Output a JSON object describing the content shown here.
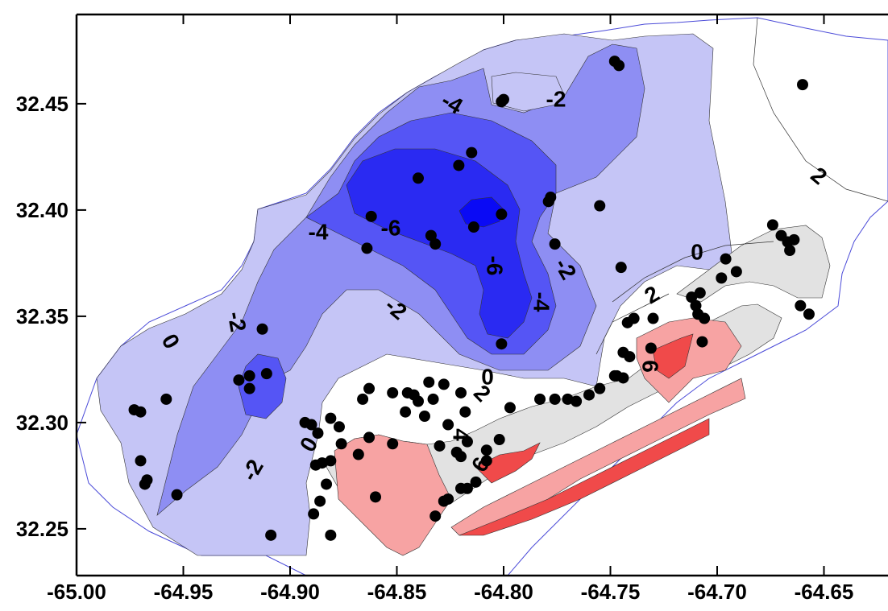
{
  "chart_data": {
    "type": "contour-map",
    "xlim": [
      -65.0,
      -64.62
    ],
    "ylim": [
      32.228,
      32.492
    ],
    "x_ticks": [
      "-65.00",
      "-64.95",
      "-64.90",
      "-64.85",
      "-64.80",
      "-64.75",
      "-64.70",
      "-64.65"
    ],
    "y_ticks": [
      "32.25",
      "32.30",
      "32.35",
      "32.40",
      "32.45"
    ],
    "contour_levels": [
      -6,
      -4,
      -2,
      0,
      2,
      4,
      6
    ],
    "level_colors": {
      "-6": "#0a0af5",
      "-4": "#5555f5",
      "-2": "#8e8ef3",
      "0": "#c5c5f6",
      "2": "#ffffff",
      "4": "#f7a3a3",
      "6": "#f04a4a"
    },
    "land_color": "#e2e2e2",
    "contour_labels": [
      "-6",
      "-6",
      "-4",
      "-4",
      "-4",
      "-2",
      "-2",
      "-2",
      "-2",
      "-2",
      "0",
      "0",
      "0",
      "0",
      "2",
      "2",
      "2",
      "4",
      "6",
      "6"
    ],
    "stations": [
      [
        -64.748,
        32.47
      ],
      [
        -64.746,
        32.468
      ],
      [
        -64.801,
        32.451
      ],
      [
        -64.8,
        32.452
      ],
      [
        -64.66,
        32.459
      ],
      [
        -64.815,
        32.427
      ],
      [
        -64.821,
        32.421
      ],
      [
        -64.84,
        32.415
      ],
      [
        -64.778,
        32.406
      ],
      [
        -64.779,
        32.404
      ],
      [
        -64.755,
        32.402
      ],
      [
        -64.801,
        32.398
      ],
      [
        -64.814,
        32.392
      ],
      [
        -64.862,
        32.397
      ],
      [
        -64.834,
        32.388
      ],
      [
        -64.832,
        32.384
      ],
      [
        -64.864,
        32.382
      ],
      [
        -64.776,
        32.384
      ],
      [
        -64.745,
        32.373
      ],
      [
        -64.696,
        32.377
      ],
      [
        -64.691,
        32.371
      ],
      [
        -64.698,
        32.368
      ],
      [
        -64.674,
        32.393
      ],
      [
        -64.67,
        32.388
      ],
      [
        -64.667,
        32.385
      ],
      [
        -64.664,
        32.386
      ],
      [
        -64.666,
        32.381
      ],
      [
        -64.708,
        32.361
      ],
      [
        -64.712,
        32.359
      ],
      [
        -64.71,
        32.355
      ],
      [
        -64.706,
        32.349
      ],
      [
        -64.709,
        32.351
      ],
      [
        -64.661,
        32.355
      ],
      [
        -64.657,
        32.351
      ],
      [
        -64.742,
        32.347
      ],
      [
        -64.739,
        32.349
      ],
      [
        -64.73,
        32.349
      ],
      [
        -64.707,
        32.338
      ],
      [
        -64.744,
        32.333
      ],
      [
        -64.741,
        32.331
      ],
      [
        -64.731,
        32.335
      ],
      [
        -64.747,
        32.322
      ],
      [
        -64.744,
        32.321
      ],
      [
        -64.801,
        32.337
      ],
      [
        -64.913,
        32.344
      ],
      [
        -64.911,
        32.323
      ],
      [
        -64.919,
        32.322
      ],
      [
        -64.924,
        32.32
      ],
      [
        -64.919,
        32.316
      ],
      [
        -64.973,
        32.306
      ],
      [
        -64.97,
        32.305
      ],
      [
        -64.958,
        32.311
      ],
      [
        -64.97,
        32.282
      ],
      [
        -64.967,
        32.273
      ],
      [
        -64.968,
        32.271
      ],
      [
        -64.953,
        32.266
      ],
      [
        -64.909,
        32.247
      ],
      [
        -64.893,
        32.3
      ],
      [
        -64.89,
        32.299
      ],
      [
        -64.887,
        32.295
      ],
      [
        -64.885,
        32.281
      ],
      [
        -64.888,
        32.28
      ],
      [
        -64.883,
        32.271
      ],
      [
        -64.886,
        32.263
      ],
      [
        -64.889,
        32.257
      ],
      [
        -64.881,
        32.247
      ],
      [
        -64.881,
        32.302
      ],
      [
        -64.877,
        32.298
      ],
      [
        -64.876,
        32.29
      ],
      [
        -64.881,
        32.282
      ],
      [
        -64.868,
        32.285
      ],
      [
        -64.863,
        32.293
      ],
      [
        -64.86,
        32.265
      ],
      [
        -64.866,
        32.311
      ],
      [
        -64.863,
        32.316
      ],
      [
        -64.852,
        32.314
      ],
      [
        -64.845,
        32.314
      ],
      [
        -64.846,
        32.305
      ],
      [
        -64.842,
        32.313
      ],
      [
        -64.84,
        32.31
      ],
      [
        -64.837,
        32.303
      ],
      [
        -64.852,
        32.29
      ],
      [
        -64.835,
        32.319
      ],
      [
        -64.828,
        32.318
      ],
      [
        -64.833,
        32.311
      ],
      [
        -64.826,
        32.299
      ],
      [
        -64.83,
        32.289
      ],
      [
        -64.82,
        32.314
      ],
      [
        -64.818,
        32.305
      ],
      [
        -64.817,
        32.291
      ],
      [
        -64.82,
        32.284
      ],
      [
        -64.822,
        32.286
      ],
      [
        -64.817,
        32.269
      ],
      [
        -64.813,
        32.272
      ],
      [
        -64.828,
        32.263
      ],
      [
        -64.826,
        32.264
      ],
      [
        -64.82,
        32.269
      ],
      [
        -64.832,
        32.256
      ],
      [
        -64.808,
        32.287
      ],
      [
        -64.802,
        32.292
      ],
      [
        -64.808,
        32.282
      ],
      [
        -64.797,
        32.307
      ],
      [
        -64.776,
        32.311
      ],
      [
        -64.77,
        32.311
      ],
      [
        -64.766,
        32.31
      ],
      [
        -64.76,
        32.313
      ],
      [
        -64.755,
        32.316
      ],
      [
        -64.748,
        32.322
      ],
      [
        -64.783,
        32.311
      ]
    ]
  }
}
